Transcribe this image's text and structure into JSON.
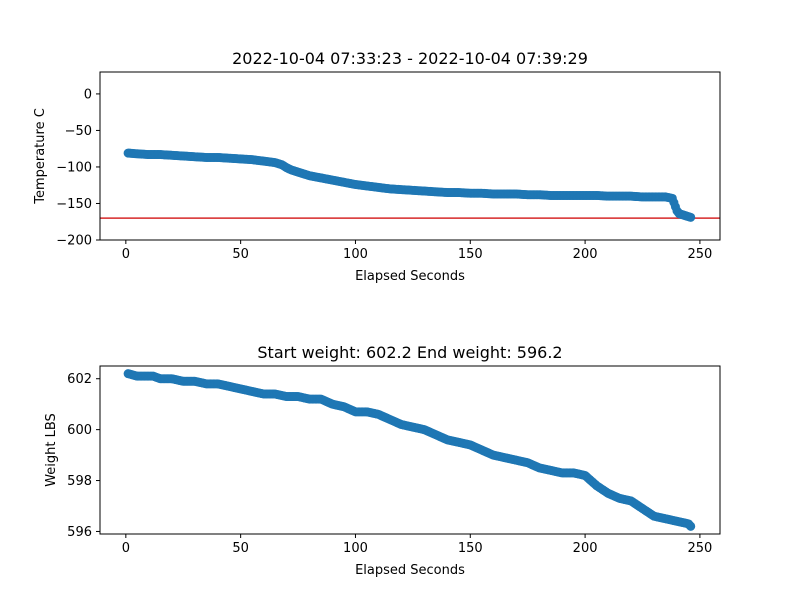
{
  "chart_data": [
    {
      "type": "scatter",
      "title": "2022-10-04 07:33:23 - 2022-10-04 07:39:29",
      "xlabel": "Elapsed Seconds",
      "ylabel": "Temperature C",
      "xlim": [
        -11.25,
        258.75
      ],
      "ylim": [
        -200,
        30
      ],
      "xticks": [
        0,
        50,
        100,
        150,
        200,
        250
      ],
      "yticks": [
        0,
        -50,
        -100,
        -150,
        -200
      ],
      "ytick_labels": [
        "0",
        "−50",
        "−100",
        "−150",
        "−200"
      ],
      "marker_color": "#1f77b4",
      "hline": {
        "y": -170,
        "color": "#d62728"
      },
      "series": [
        {
          "x": [
            1,
            5,
            10,
            15,
            20,
            25,
            30,
            35,
            40,
            45,
            50,
            55,
            60,
            65,
            68,
            70,
            72,
            75,
            78,
            80,
            85,
            90,
            95,
            100,
            105,
            110,
            115,
            120,
            125,
            130,
            135,
            140,
            145,
            150,
            155,
            160,
            165,
            170,
            175,
            180,
            185,
            190,
            195,
            200,
            205,
            210,
            215,
            220,
            225,
            230,
            235,
            238,
            240,
            241,
            242,
            243,
            244,
            245,
            246
          ],
          "y": [
            -81,
            -82,
            -83,
            -83,
            -84,
            -85,
            -86,
            -87,
            -87,
            -88,
            -89,
            -90,
            -92,
            -94,
            -97,
            -101,
            -104,
            -107,
            -110,
            -112,
            -115,
            -118,
            -121,
            -124,
            -126,
            -128,
            -130,
            -131,
            -132,
            -133,
            -134,
            -135,
            -135,
            -136,
            -136,
            -137,
            -137,
            -137,
            -138,
            -138,
            -139,
            -139,
            -139,
            -139,
            -139,
            -140,
            -140,
            -140,
            -141,
            -141,
            -141,
            -143,
            -160,
            -164,
            -165,
            -166,
            -167,
            -168,
            -169
          ]
        }
      ]
    },
    {
      "type": "scatter",
      "title": "Start weight: 602.2 End weight: 596.2",
      "xlabel": "Elapsed Seconds",
      "ylabel": "Weight LBS",
      "xlim": [
        -11.25,
        258.75
      ],
      "ylim": [
        595.9,
        602.5
      ],
      "xticks": [
        0,
        50,
        100,
        150,
        200,
        250
      ],
      "yticks": [
        596,
        598,
        600,
        602
      ],
      "ytick_labels": [
        "596",
        "598",
        "600",
        "602"
      ],
      "marker_color": "#1f77b4",
      "series": [
        {
          "x": [
            1,
            5,
            10,
            12,
            15,
            20,
            25,
            30,
            35,
            40,
            45,
            50,
            55,
            60,
            65,
            70,
            75,
            80,
            85,
            90,
            95,
            100,
            105,
            110,
            115,
            120,
            125,
            130,
            135,
            140,
            145,
            150,
            155,
            160,
            165,
            170,
            175,
            180,
            185,
            190,
            195,
            200,
            205,
            210,
            215,
            220,
            225,
            230,
            235,
            240,
            245,
            246
          ],
          "y": [
            602.2,
            602.1,
            602.1,
            602.1,
            602.0,
            602.0,
            601.9,
            601.9,
            601.8,
            601.8,
            601.7,
            601.6,
            601.5,
            601.4,
            601.4,
            601.3,
            601.3,
            601.2,
            601.2,
            601.0,
            600.9,
            600.7,
            600.7,
            600.6,
            600.4,
            600.2,
            600.1,
            600.0,
            599.8,
            599.6,
            599.5,
            599.4,
            599.2,
            599.0,
            598.9,
            598.8,
            598.7,
            598.5,
            598.4,
            598.3,
            598.3,
            598.2,
            597.8,
            597.5,
            597.3,
            597.2,
            596.9,
            596.6,
            596.5,
            596.4,
            596.3,
            596.2
          ]
        }
      ]
    }
  ]
}
